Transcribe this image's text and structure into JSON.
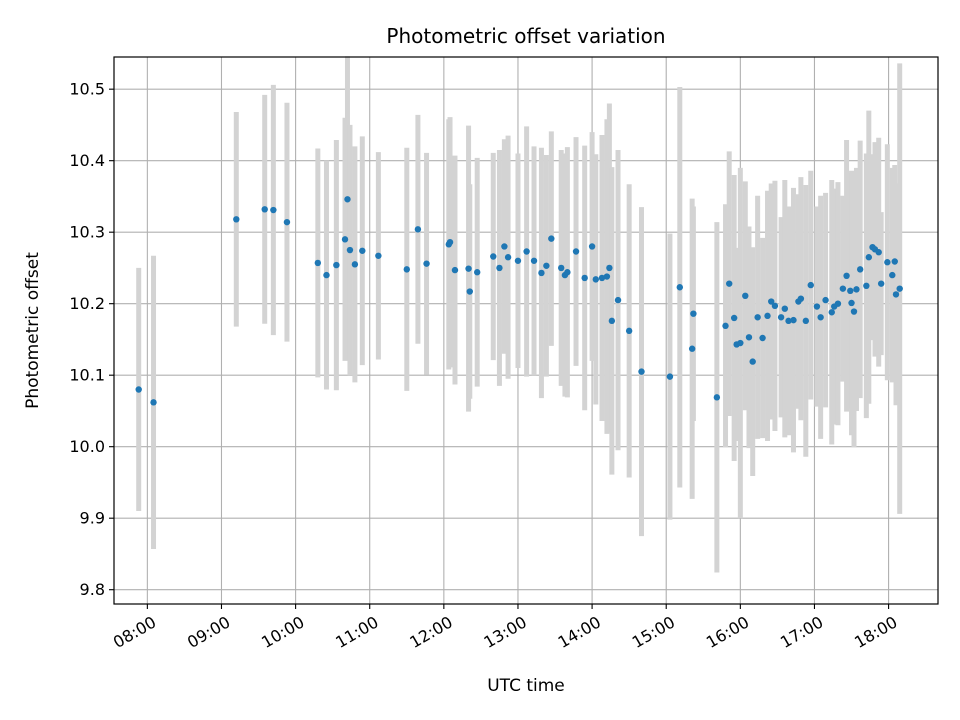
{
  "chart_data": {
    "type": "scatter",
    "title": "Photometric offset variation",
    "xlabel": "UTC time",
    "ylabel": "Photometric offset",
    "grid": true,
    "xlim": [
      "07:33",
      "18:40"
    ],
    "ylim": [
      9.78,
      10.545
    ],
    "x_ticks": [
      "08:00",
      "09:00",
      "10:00",
      "11:00",
      "12:00",
      "13:00",
      "14:00",
      "15:00",
      "16:00",
      "17:00",
      "18:00"
    ],
    "y_ticks": [
      "9.8",
      "9.9",
      "10.0",
      "10.1",
      "10.2",
      "10.3",
      "10.4",
      "10.5"
    ],
    "colors": {
      "point": "#1f77b4",
      "error_bar": "#d3d3d3",
      "grid": "#b0b0b0"
    },
    "series": [
      {
        "x": [
          "07:53",
          "08:05",
          "09:12",
          "09:35",
          "09:42",
          "09:53",
          "10:18",
          "10:25",
          "10:33",
          "10:40",
          "10:42",
          "10:44",
          "10:48",
          "10:54",
          "11:07",
          "11:30",
          "11:39",
          "11:46",
          "12:04",
          "12:05",
          "12:09",
          "12:20",
          "12:21",
          "12:27",
          "12:40",
          "12:45",
          "12:49",
          "12:52",
          "13:00",
          "13:07",
          "13:13",
          "13:19",
          "13:23",
          "13:27",
          "13:35",
          "13:38",
          "13:40",
          "13:47",
          "13:54",
          "14:00",
          "14:03",
          "14:08",
          "14:12",
          "14:14",
          "14:16",
          "14:21",
          "14:30",
          "14:40",
          "15:03",
          "15:11",
          "15:21",
          "15:22",
          "15:41",
          "15:48",
          "15:51",
          "15:55",
          "15:57",
          "16:00",
          "16:04",
          "16:07",
          "16:10",
          "16:14",
          "16:18",
          "16:22",
          "16:25",
          "16:28",
          "16:33",
          "16:36",
          "16:39",
          "16:43",
          "16:47",
          "16:49",
          "16:53",
          "16:57",
          "17:02",
          "17:05",
          "17:09",
          "17:14",
          "17:16",
          "17:19",
          "17:23",
          "17:26",
          "17:29",
          "17:30",
          "17:32",
          "17:34",
          "17:37",
          "17:42",
          "17:44",
          "17:47",
          "17:49",
          "17:52",
          "17:54",
          "17:59",
          "18:03",
          "18:05",
          "18:06",
          "18:09"
        ],
        "y": [
          10.08,
          10.062,
          10.318,
          10.332,
          10.331,
          10.314,
          10.257,
          10.24,
          10.254,
          10.29,
          10.346,
          10.275,
          10.255,
          10.274,
          10.267,
          10.248,
          10.304,
          10.256,
          10.283,
          10.286,
          10.247,
          10.249,
          10.217,
          10.244,
          10.266,
          10.25,
          10.28,
          10.265,
          10.26,
          10.273,
          10.26,
          10.243,
          10.253,
          10.291,
          10.25,
          10.24,
          10.244,
          10.273,
          10.236,
          10.28,
          10.234,
          10.236,
          10.238,
          10.25,
          10.176,
          10.205,
          10.162,
          10.105,
          10.098,
          10.223,
          10.137,
          10.186,
          10.069,
          10.169,
          10.228,
          10.18,
          10.143,
          10.145,
          10.211,
          10.153,
          10.119,
          10.181,
          10.152,
          10.183,
          10.203,
          10.197,
          10.181,
          10.193,
          10.176,
          10.177,
          10.203,
          10.207,
          10.176,
          10.226,
          10.196,
          10.181,
          10.205,
          10.188,
          10.196,
          10.2,
          10.221,
          10.239,
          10.218,
          10.201,
          10.189,
          10.22,
          10.248,
          10.225,
          10.265,
          10.279,
          10.276,
          10.272,
          10.228,
          10.258,
          10.24,
          10.259,
          10.213,
          10.221
        ],
        "error": [
          0.17,
          0.205,
          0.15,
          0.16,
          0.175,
          0.167,
          0.16,
          0.16,
          0.175,
          0.17,
          0.2,
          0.175,
          0.165,
          0.16,
          0.145,
          0.17,
          0.16,
          0.155,
          0.175,
          0.175,
          0.16,
          0.2,
          0.15,
          0.16,
          0.145,
          0.165,
          0.15,
          0.17,
          0.15,
          0.175,
          0.16,
          0.175,
          0.155,
          0.15,
          0.165,
          0.17,
          0.175,
          0.16,
          0.185,
          0.16,
          0.175,
          0.2,
          0.22,
          0.23,
          0.215,
          0.21,
          0.205,
          0.23,
          0.2,
          0.28,
          0.21,
          0.15,
          0.245,
          0.17,
          0.185,
          0.2,
          0.135,
          0.245,
          0.16,
          0.155,
          0.16,
          0.17,
          0.14,
          0.175,
          0.165,
          0.175,
          0.14,
          0.18,
          0.16,
          0.185,
          0.15,
          0.17,
          0.19,
          0.16,
          0.14,
          0.17,
          0.15,
          0.185,
          0.165,
          0.17,
          0.13,
          0.19,
          0.165,
          0.185,
          0.19,
          0.17,
          0.18,
          0.185,
          0.205,
          0.13,
          0.15,
          0.16,
          0.1,
          0.165,
          0.15,
          0.135,
          0.155,
          0.315
        ]
      }
    ]
  }
}
